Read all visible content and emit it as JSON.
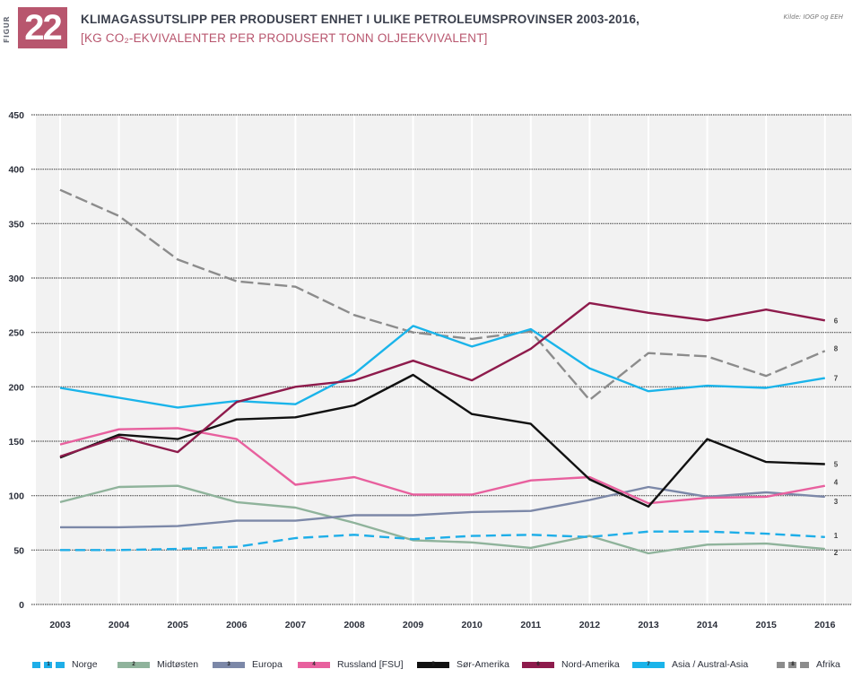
{
  "figure": {
    "label": "FIGUR",
    "number": "22",
    "title": "KLIMAGASSUTSLIPP PER PRODUSERT ENHET I ULIKE PETROLEUMSPROVINSER 2003-2016,",
    "subtitle": "[KG CO₂-EKVIVALENTER PER PRODUSERT TONN OLJEEKVIVALENT]",
    "source": "Kilde: IOGP og EEH",
    "accent_color": "#b8566e"
  },
  "chart_data": {
    "type": "line",
    "title": "KLIMAGASSUTSLIPP PER PRODUSERT ENHET I ULIKE PETROLEUMSPROVINSER 2003-2016",
    "xlabel": "",
    "ylabel": "kg CO2-ekvivalenter per produsert tonn oljeekvivalent",
    "x": [
      "2003",
      "2004",
      "2005",
      "2006",
      "2007",
      "2008",
      "2009",
      "2010",
      "2011",
      "2012",
      "2013",
      "2014",
      "2015",
      "2016"
    ],
    "ylim": [
      0,
      450
    ],
    "yticks": [
      0,
      50,
      100,
      150,
      200,
      250,
      300,
      350,
      400,
      450
    ],
    "grid": true,
    "legend_position": "bottom",
    "series": [
      {
        "id": "1",
        "name": "Norge",
        "color": "#1eaee8",
        "dashed": true,
        "values": [
          50,
          50,
          51,
          53,
          61,
          64,
          60,
          63,
          64,
          62,
          67,
          67,
          65,
          62
        ]
      },
      {
        "id": "2",
        "name": "Midtøsten",
        "color": "#8fb39b",
        "dashed": false,
        "values": [
          94,
          108,
          109,
          94,
          89,
          75,
          59,
          57,
          52,
          63,
          47,
          55,
          56,
          51
        ]
      },
      {
        "id": "3",
        "name": "Europa",
        "color": "#7c88a8",
        "dashed": false,
        "values": [
          71,
          71,
          72,
          77,
          77,
          82,
          82,
          85,
          86,
          96,
          108,
          99,
          103,
          99
        ]
      },
      {
        "id": "4",
        "name": "Russland [FSU]",
        "color": "#e8609e",
        "dashed": false,
        "values": [
          147,
          161,
          162,
          152,
          110,
          117,
          101,
          101,
          114,
          117,
          93,
          98,
          99,
          109
        ]
      },
      {
        "id": "5",
        "name": "Sør-Amerika",
        "color": "#111111",
        "dashed": false,
        "values": [
          135,
          156,
          152,
          170,
          172,
          183,
          211,
          175,
          166,
          115,
          90,
          152,
          131,
          129
        ]
      },
      {
        "id": "6",
        "name": "Nord-Amerika",
        "color": "#8e1b4c",
        "dashed": false,
        "values": [
          136,
          154,
          140,
          186,
          200,
          206,
          224,
          206,
          235,
          277,
          268,
          261,
          271,
          261
        ]
      },
      {
        "id": "7",
        "name": "Asia / Austral-Asia",
        "color": "#1ab4ea",
        "dashed": false,
        "values": [
          199,
          190,
          181,
          187,
          184,
          212,
          256,
          237,
          253,
          217,
          196,
          201,
          199,
          208
        ]
      },
      {
        "id": "8",
        "name": "Afrika",
        "color": "#8c8c8c",
        "dashed": true,
        "values": [
          381,
          357,
          317,
          297,
          292,
          266,
          250,
          244,
          251,
          188,
          231,
          228,
          210,
          233
        ]
      }
    ],
    "end_labels": [
      "1",
      "2",
      "3",
      "4",
      "5",
      "6",
      "7",
      "8"
    ]
  },
  "legend": [
    {
      "id": "1",
      "label": "Norge"
    },
    {
      "id": "2",
      "label": "Midtøsten"
    },
    {
      "id": "3",
      "label": "Europa"
    },
    {
      "id": "4",
      "label": "Russland [FSU]"
    },
    {
      "id": "5",
      "label": "Sør-Amerika"
    },
    {
      "id": "6",
      "label": "Nord-Amerika"
    },
    {
      "id": "7",
      "label": "Asia / Austral-Asia"
    },
    {
      "id": "8",
      "label": "Afrika"
    }
  ]
}
